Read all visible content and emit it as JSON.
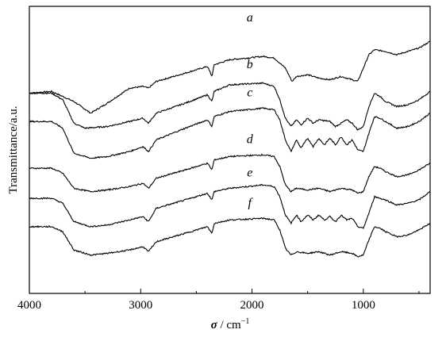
{
  "chart_data": {
    "type": "line",
    "ylabel": "Transmittance/a.u.",
    "xlabel": {
      "symbol": "σ",
      "separator": " / ",
      "unit_base": "cm",
      "unit_exp": "−1"
    },
    "xlim": [
      4000,
      400
    ],
    "x_direction": "reversed",
    "xticks": [
      4000,
      3000,
      2000,
      1000
    ],
    "xtick_labels": [
      "4000",
      "3000",
      "2000",
      "1000"
    ],
    "yticks_labels": "none",
    "grid": false,
    "series": [
      {
        "name": "a",
        "x": [
          4000,
          3800,
          3600,
          3450,
          3300,
          3100,
          2980,
          2930,
          2860,
          2600,
          2400,
          2360,
          2340,
          2200,
          1900,
          1800,
          1700,
          1640,
          1600,
          1500,
          1400,
          1300,
          1200,
          1100,
          1050,
          1000,
          950,
          900,
          800,
          700,
          600,
          500,
          400
        ],
        "y": [
          4.8,
          4.85,
          4.55,
          4.2,
          4.5,
          4.95,
          5.0,
          4.95,
          5.15,
          5.4,
          5.6,
          5.3,
          5.65,
          5.8,
          5.9,
          5.85,
          5.55,
          5.15,
          5.3,
          5.35,
          5.25,
          5.2,
          5.3,
          5.2,
          5.15,
          5.55,
          5.95,
          6.1,
          6.05,
          5.95,
          6.05,
          6.15,
          6.35
        ]
      },
      {
        "name": "b",
        "x": [
          4000,
          3800,
          3700,
          3600,
          3500,
          3300,
          3100,
          2980,
          2930,
          2860,
          2600,
          2400,
          2360,
          2340,
          2200,
          1900,
          1800,
          1750,
          1700,
          1650,
          1600,
          1560,
          1500,
          1450,
          1400,
          1300,
          1250,
          1150,
          1100,
          1050,
          1000,
          950,
          900,
          850,
          800,
          700,
          600,
          500,
          400
        ],
        "y": [
          4.8,
          4.8,
          4.6,
          3.9,
          3.75,
          3.8,
          3.95,
          4.05,
          3.9,
          4.2,
          4.5,
          4.75,
          4.55,
          4.85,
          5.05,
          5.1,
          5.0,
          4.6,
          4.05,
          3.8,
          4.0,
          3.85,
          4.05,
          3.9,
          4.0,
          3.95,
          3.8,
          4.0,
          3.9,
          3.7,
          3.8,
          4.4,
          4.8,
          4.7,
          4.55,
          4.4,
          4.45,
          4.6,
          4.85
        ]
      },
      {
        "name": "c",
        "x": [
          4000,
          3800,
          3700,
          3600,
          3450,
          3300,
          3100,
          2980,
          2930,
          2860,
          2600,
          2400,
          2360,
          2340,
          2200,
          1900,
          1800,
          1750,
          1700,
          1650,
          1600,
          1560,
          1500,
          1450,
          1400,
          1350,
          1300,
          1250,
          1200,
          1150,
          1100,
          1050,
          1000,
          950,
          900,
          850,
          800,
          700,
          600,
          500,
          400
        ],
        "y": [
          3.95,
          3.95,
          3.75,
          3.0,
          2.85,
          2.9,
          3.05,
          3.2,
          3.05,
          3.4,
          3.75,
          4.0,
          3.8,
          4.1,
          4.25,
          4.35,
          4.3,
          4.0,
          3.4,
          3.05,
          3.4,
          3.15,
          3.45,
          3.2,
          3.45,
          3.25,
          3.45,
          3.25,
          3.5,
          3.25,
          3.4,
          3.1,
          3.05,
          3.6,
          4.1,
          4.05,
          3.95,
          3.75,
          3.8,
          3.95,
          4.2
        ]
      },
      {
        "name": "d",
        "x": [
          4000,
          3800,
          3700,
          3600,
          3450,
          3300,
          3100,
          2980,
          2930,
          2860,
          2600,
          2400,
          2360,
          2340,
          2200,
          1900,
          1800,
          1750,
          1700,
          1650,
          1600,
          1500,
          1400,
          1300,
          1200,
          1100,
          1050,
          1000,
          950,
          900,
          850,
          800,
          700,
          600,
          500,
          400
        ],
        "y": [
          2.55,
          2.55,
          2.4,
          1.95,
          1.85,
          1.9,
          2.0,
          2.1,
          1.95,
          2.25,
          2.5,
          2.7,
          2.5,
          2.8,
          2.9,
          2.95,
          2.9,
          2.6,
          2.05,
          1.85,
          1.95,
          1.9,
          1.95,
          1.85,
          1.95,
          1.9,
          1.8,
          1.85,
          2.3,
          2.6,
          2.55,
          2.45,
          2.3,
          2.35,
          2.5,
          2.7
        ]
      },
      {
        "name": "e",
        "x": [
          4000,
          3800,
          3700,
          3600,
          3450,
          3300,
          3100,
          2980,
          2930,
          2860,
          2600,
          2400,
          2360,
          2340,
          2200,
          1900,
          1800,
          1750,
          1700,
          1650,
          1600,
          1560,
          1500,
          1450,
          1400,
          1350,
          1300,
          1250,
          1200,
          1150,
          1100,
          1050,
          1000,
          950,
          900,
          850,
          800,
          700,
          600,
          500,
          400
        ],
        "y": [
          1.65,
          1.65,
          1.5,
          0.95,
          0.8,
          0.85,
          1.0,
          1.1,
          0.95,
          1.35,
          1.6,
          1.8,
          1.6,
          1.85,
          1.95,
          2.05,
          2.0,
          1.7,
          1.15,
          0.9,
          1.15,
          0.95,
          1.15,
          1.0,
          1.15,
          1.0,
          1.1,
          0.95,
          1.15,
          1.0,
          1.05,
          0.8,
          0.75,
          1.2,
          1.7,
          1.65,
          1.6,
          1.45,
          1.5,
          1.6,
          1.85
        ]
      },
      {
        "name": "f",
        "x": [
          4000,
          3800,
          3700,
          3600,
          3450,
          3300,
          3100,
          2980,
          2930,
          2860,
          2600,
          2400,
          2360,
          2340,
          2200,
          1900,
          1800,
          1750,
          1700,
          1650,
          1600,
          1500,
          1400,
          1300,
          1200,
          1100,
          1050,
          1000,
          950,
          900,
          850,
          800,
          700,
          600,
          500,
          400
        ],
        "y": [
          0.8,
          0.8,
          0.65,
          0.1,
          -0.05,
          0.0,
          0.1,
          0.2,
          0.05,
          0.35,
          0.6,
          0.8,
          0.6,
          0.9,
          1.0,
          1.05,
          1.0,
          0.7,
          0.15,
          -0.05,
          0.05,
          0.0,
          0.05,
          -0.05,
          0.05,
          0.0,
          -0.1,
          -0.05,
          0.4,
          0.8,
          0.75,
          0.65,
          0.5,
          0.55,
          0.7,
          0.9
        ]
      }
    ],
    "ylim": [
      -1.2,
      7.4
    ],
    "series_label_positions": [
      {
        "name": "a",
        "x": 2020,
        "y": 6.95
      },
      {
        "name": "b",
        "x": 2020,
        "y": 5.55
      },
      {
        "name": "c",
        "x": 2020,
        "y": 4.7
      },
      {
        "name": "d",
        "x": 2020,
        "y": 3.3
      },
      {
        "name": "e",
        "x": 2020,
        "y": 2.3
      },
      {
        "name": "f",
        "x": 2020,
        "y": 1.4
      }
    ]
  }
}
